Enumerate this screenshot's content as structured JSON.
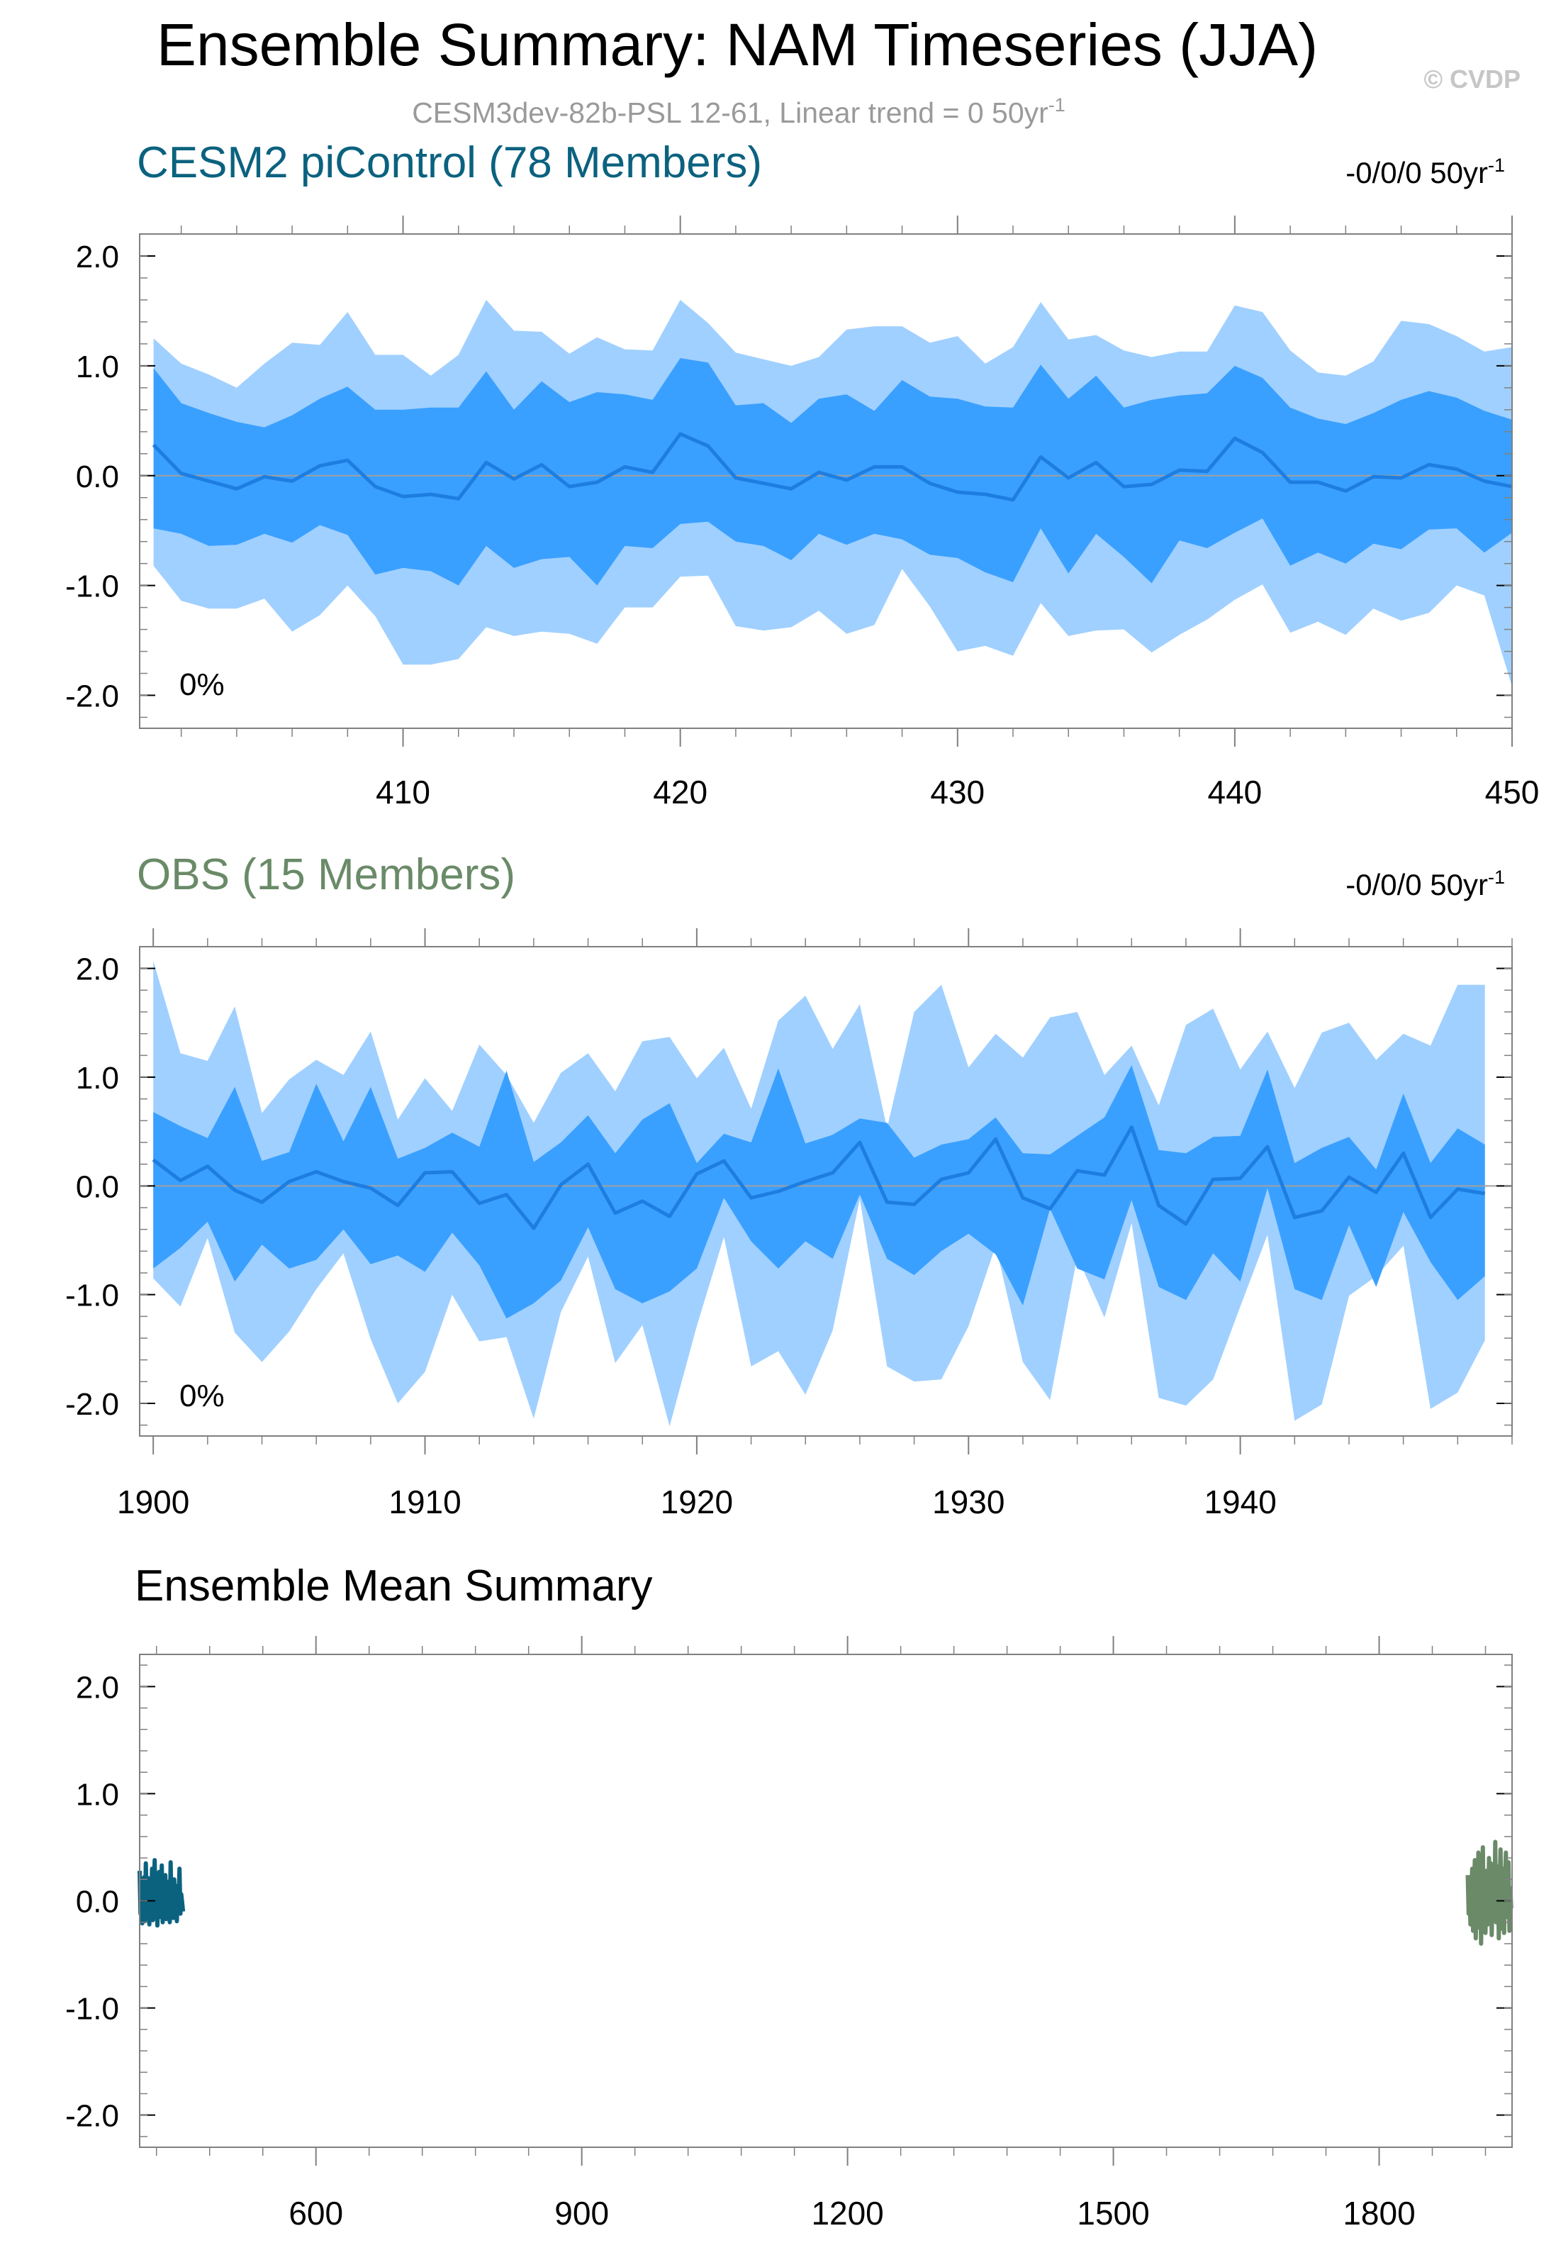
{
  "header": {
    "title": "Ensemble Summary: NAM Timeseries (JJA)",
    "copyright": "© CVDP",
    "subtitle": "CESM3dev-82b-PSL 12-61, Linear trend = 0 50yr",
    "subtitle_sup": "-1"
  },
  "colors": {
    "outer_band": "#a0d0ff",
    "inner_band": "#3aa0ff",
    "mean_line": "#1e7de0",
    "model_line": "#0b627f",
    "obs_line": "#6a8a68",
    "zero_line": "#a0a0a0",
    "frame": "#808080"
  },
  "chart_data": [
    {
      "type": "area",
      "title": "CESM2 piControl (78 Members)",
      "trend_label": "-0/0/0 50yr",
      "trend_sup": "-1",
      "percent_label": "0%",
      "x": [
        401,
        402,
        403,
        404,
        405,
        406,
        407,
        408,
        409,
        410,
        411,
        412,
        413,
        414,
        415,
        416,
        417,
        418,
        419,
        420,
        421,
        422,
        423,
        424,
        425,
        426,
        427,
        428,
        429,
        430,
        431,
        432,
        433,
        434,
        435,
        436,
        437,
        438,
        439,
        440,
        441,
        442,
        443,
        444,
        445,
        446,
        447,
        448,
        449,
        450
      ],
      "xlim": [
        400.5,
        450
      ],
      "xticks": [
        "410",
        "420",
        "430",
        "440",
        "450"
      ],
      "ylim": [
        -2.3,
        2.2
      ],
      "yticks": [
        "2.0",
        "1.0",
        "0.0",
        "-1.0",
        "-2.0"
      ],
      "series": [
        {
          "name": "mean",
          "values": [
            0.28,
            0.02,
            -0.05,
            -0.12,
            -0.01,
            -0.05,
            0.09,
            0.14,
            -0.1,
            -0.19,
            -0.17,
            -0.21,
            0.12,
            -0.03,
            0.1,
            -0.1,
            -0.06,
            0.08,
            0.03,
            0.38,
            0.27,
            -0.02,
            -0.07,
            -0.12,
            0.03,
            -0.04,
            0.08,
            0.08,
            -0.07,
            -0.15,
            -0.17,
            -0.22,
            0.17,
            -0.02,
            0.12,
            -0.1,
            -0.08,
            0.05,
            0.04,
            0.34,
            0.21,
            -0.06,
            -0.06,
            -0.14,
            -0.01,
            -0.02,
            0.1,
            0.06,
            -0.05,
            -0.1
          ]
        },
        {
          "name": "p25",
          "values": [
            -0.48,
            -0.53,
            -0.64,
            -0.63,
            -0.53,
            -0.61,
            -0.45,
            -0.54,
            -0.9,
            -0.84,
            -0.87,
            -1.0,
            -0.64,
            -0.84,
            -0.76,
            -0.74,
            -1.0,
            -0.64,
            -0.66,
            -0.44,
            -0.42,
            -0.6,
            -0.64,
            -0.77,
            -0.53,
            -0.63,
            -0.53,
            -0.58,
            -0.72,
            -0.75,
            -0.88,
            -0.97,
            -0.48,
            -0.89,
            -0.53,
            -0.74,
            -0.98,
            -0.59,
            -0.66,
            -0.52,
            -0.39,
            -0.82,
            -0.7,
            -0.8,
            -0.62,
            -0.67,
            -0.49,
            -0.48,
            -0.7,
            -0.52
          ]
        },
        {
          "name": "p75",
          "values": [
            0.98,
            0.66,
            0.57,
            0.49,
            0.44,
            0.55,
            0.7,
            0.81,
            0.6,
            0.6,
            0.62,
            0.62,
            0.95,
            0.6,
            0.86,
            0.67,
            0.76,
            0.74,
            0.69,
            1.07,
            1.03,
            0.64,
            0.66,
            0.48,
            0.7,
            0.74,
            0.59,
            0.87,
            0.72,
            0.7,
            0.63,
            0.62,
            1.01,
            0.7,
            0.91,
            0.62,
            0.69,
            0.73,
            0.75,
            1.0,
            0.89,
            0.62,
            0.52,
            0.47,
            0.57,
            0.69,
            0.77,
            0.71,
            0.59,
            0.51
          ]
        },
        {
          "name": "min",
          "values": [
            -0.82,
            -1.14,
            -1.21,
            -1.21,
            -1.12,
            -1.42,
            -1.27,
            -1.0,
            -1.28,
            -1.72,
            -1.72,
            -1.67,
            -1.38,
            -1.46,
            -1.42,
            -1.44,
            -1.53,
            -1.2,
            -1.2,
            -0.92,
            -0.91,
            -1.37,
            -1.41,
            -1.38,
            -1.23,
            -1.44,
            -1.36,
            -0.85,
            -1.19,
            -1.6,
            -1.55,
            -1.64,
            -1.16,
            -1.46,
            -1.41,
            -1.4,
            -1.61,
            -1.45,
            -1.31,
            -1.13,
            -0.99,
            -1.43,
            -1.33,
            -1.45,
            -1.21,
            -1.32,
            -1.25,
            -1.0,
            -1.09,
            -1.92
          ]
        },
        {
          "name": "max",
          "values": [
            1.25,
            1.02,
            0.92,
            0.8,
            1.02,
            1.21,
            1.19,
            1.49,
            1.1,
            1.1,
            0.91,
            1.1,
            1.6,
            1.32,
            1.31,
            1.11,
            1.26,
            1.15,
            1.14,
            1.6,
            1.39,
            1.12,
            1.06,
            1.0,
            1.08,
            1.33,
            1.36,
            1.36,
            1.21,
            1.27,
            1.02,
            1.17,
            1.58,
            1.24,
            1.28,
            1.14,
            1.08,
            1.13,
            1.13,
            1.55,
            1.49,
            1.14,
            0.94,
            0.91,
            1.04,
            1.41,
            1.38,
            1.27,
            1.13,
            1.17
          ]
        }
      ]
    },
    {
      "type": "area",
      "title": "OBS (15 Members)",
      "trend_label": "-0/0/0 50yr",
      "trend_sup": "-1",
      "percent_label": "0%",
      "x": [
        1900,
        1901,
        1902,
        1903,
        1904,
        1905,
        1906,
        1907,
        1908,
        1909,
        1910,
        1911,
        1912,
        1913,
        1914,
        1915,
        1916,
        1917,
        1918,
        1919,
        1920,
        1921,
        1922,
        1923,
        1924,
        1925,
        1926,
        1927,
        1928,
        1929,
        1930,
        1931,
        1932,
        1933,
        1934,
        1935,
        1936,
        1937,
        1938,
        1939,
        1940,
        1941,
        1942,
        1943,
        1944,
        1945,
        1946,
        1947,
        1948,
        1949
      ],
      "xlim": [
        1899.5,
        1950
      ],
      "xticks": [
        "1900",
        "1910",
        "1920",
        "1930",
        "1940"
      ],
      "ylim": [
        -2.3,
        2.2
      ],
      "yticks": [
        "2.0",
        "1.0",
        "0.0",
        "-1.0",
        "-2.0"
      ],
      "series": [
        {
          "name": "mean",
          "values": [
            0.24,
            0.05,
            0.18,
            -0.04,
            -0.15,
            0.04,
            0.13,
            0.04,
            -0.02,
            -0.18,
            0.12,
            0.13,
            -0.16,
            -0.08,
            -0.39,
            0.01,
            0.2,
            -0.25,
            -0.14,
            -0.28,
            0.11,
            0.23,
            -0.11,
            -0.05,
            0.04,
            0.12,
            0.4,
            -0.15,
            -0.17,
            0.06,
            0.12,
            0.43,
            -0.11,
            -0.21,
            0.14,
            0.1,
            0.54,
            -0.18,
            -0.35,
            0.06,
            0.07,
            0.36,
            -0.29,
            -0.23,
            0.08,
            -0.06,
            0.3,
            -0.29,
            -0.03,
            -0.07
          ]
        },
        {
          "name": "p25",
          "values": [
            -0.76,
            -0.57,
            -0.33,
            -0.88,
            -0.54,
            -0.76,
            -0.68,
            -0.4,
            -0.72,
            -0.64,
            -0.79,
            -0.43,
            -0.73,
            -1.22,
            -1.08,
            -0.87,
            -0.38,
            -0.95,
            -1.08,
            -0.97,
            -0.76,
            -0.11,
            -0.51,
            -0.76,
            -0.51,
            -0.67,
            -0.08,
            -0.67,
            -0.82,
            -0.6,
            -0.44,
            -0.63,
            -1.1,
            -0.21,
            -0.76,
            -0.86,
            -0.13,
            -0.93,
            -1.05,
            -0.62,
            -0.88,
            -0.02,
            -0.95,
            -1.05,
            -0.36,
            -0.93,
            -0.24,
            -0.7,
            -1.05,
            -0.83
          ]
        },
        {
          "name": "p75",
          "values": [
            0.68,
            0.55,
            0.44,
            0.91,
            0.23,
            0.31,
            0.94,
            0.41,
            0.91,
            0.25,
            0.35,
            0.49,
            0.36,
            1.06,
            0.22,
            0.4,
            0.65,
            0.3,
            0.61,
            0.76,
            0.21,
            0.48,
            0.4,
            1.08,
            0.39,
            0.47,
            0.62,
            0.58,
            0.26,
            0.38,
            0.43,
            0.63,
            0.3,
            0.29,
            0.46,
            0.63,
            1.11,
            0.33,
            0.3,
            0.45,
            0.46,
            1.07,
            0.21,
            0.35,
            0.45,
            0.15,
            0.85,
            0.21,
            0.53,
            0.38
          ]
        },
        {
          "name": "min",
          "values": [
            -0.85,
            -1.11,
            -0.48,
            -1.35,
            -1.62,
            -1.34,
            -0.95,
            -0.62,
            -1.41,
            -2.0,
            -1.71,
            -1.0,
            -1.43,
            -1.39,
            -2.14,
            -1.16,
            -0.65,
            -1.63,
            -1.28,
            -2.21,
            -1.29,
            -0.47,
            -1.66,
            -1.52,
            -1.92,
            -1.33,
            -0.12,
            -1.66,
            -1.8,
            -1.78,
            -1.29,
            -0.55,
            -1.62,
            -1.97,
            -0.65,
            -1.21,
            -0.34,
            -1.95,
            -2.02,
            -1.78,
            -1.11,
            -0.45,
            -2.16,
            -2.01,
            -1.01,
            -0.83,
            -0.55,
            -2.05,
            -1.9,
            -1.42
          ]
        },
        {
          "name": "max",
          "values": [
            2.07,
            1.22,
            1.15,
            1.65,
            0.67,
            0.98,
            1.16,
            1.02,
            1.42,
            0.61,
            0.99,
            0.69,
            1.3,
            1.02,
            0.58,
            1.04,
            1.22,
            0.87,
            1.33,
            1.37,
            0.99,
            1.27,
            0.71,
            1.52,
            1.75,
            1.26,
            1.67,
            0.53,
            1.6,
            1.85,
            1.09,
            1.4,
            1.18,
            1.55,
            1.6,
            1.02,
            1.29,
            0.74,
            1.48,
            1.63,
            1.07,
            1.42,
            0.9,
            1.41,
            1.5,
            1.16,
            1.4,
            1.29,
            1.85,
            1.85
          ]
        }
      ]
    },
    {
      "type": "line",
      "title": "Ensemble Mean Summary",
      "xlim": [
        401,
        1950
      ],
      "xticks": [
        "600",
        "900",
        "1200",
        "1500",
        "1800"
      ],
      "ylim": [
        -2.3,
        2.3
      ],
      "yticks": [
        "2.0",
        "1.0",
        "0.0",
        "-1.0",
        "-2.0"
      ],
      "series": [
        {
          "name": "CESM2 piControl",
          "x_start": 401,
          "values": [
            0.28,
            -0.12,
            0.16,
            -0.21,
            0.05,
            0.22,
            -0.19,
            0.35,
            -0.02,
            -0.14,
            0.21,
            -0.22,
            0.12,
            -0.05,
            0.3,
            -0.18,
            0.02,
            0.38,
            -0.1,
            0.16,
            -0.23,
            0.08,
            0.27,
            -0.15,
            0.03,
            0.33,
            -0.2,
            0.12,
            -0.06,
            0.24,
            -0.17,
            0.1,
            -0.03,
            0.18,
            -0.2,
            0.36,
            -0.08,
            0.05,
            -0.16,
            0.2,
            -0.05,
            0.14,
            -0.19,
            0.09,
            0.02,
            0.3,
            -0.12,
            0.06,
            -0.02,
            -0.1
          ]
        },
        {
          "name": "OBS",
          "x_start": 1900,
          "values": [
            0.24,
            -0.12,
            0.18,
            -0.22,
            0.05,
            0.3,
            -0.28,
            0.1,
            0.38,
            -0.35,
            0.12,
            -0.05,
            0.45,
            -0.25,
            0.2,
            -0.4,
            0.15,
            0.5,
            -0.1,
            0.05,
            -0.3,
            0.28,
            0.1,
            -0.22,
            0.4,
            -0.05,
            0.35,
            -0.32,
            0.06,
            0.22,
            -0.18,
            0.55,
            -0.2,
            0.1,
            0.32,
            -0.35,
            0.14,
            0.48,
            -0.26,
            0.02,
            0.3,
            -0.3,
            0.2,
            0.45,
            -0.15,
            0.08,
            0.36,
            -0.28,
            0.12,
            -0.07
          ]
        }
      ]
    }
  ]
}
